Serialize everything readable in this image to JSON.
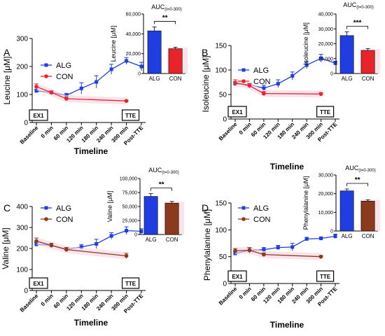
{
  "colors": {
    "alg": "#1f3de0",
    "con_red": "#e8242a",
    "con_brown": "#8b3a1e",
    "shade_pink": "#f8d0de"
  },
  "panels": [
    {
      "letter": "A",
      "ylabel": "Leucine [μM]",
      "xlabel": "Timeline",
      "categories": [
        "Baseline",
        "0 min",
        "60 min",
        "120 min",
        "180 min",
        "240 min",
        "300 min",
        "Post-TTE"
      ],
      "ylim": [
        0,
        300
      ],
      "yticks": [
        "0",
        "100",
        "200",
        "300"
      ],
      "box_left": "EX1",
      "box_right": "TTE",
      "con_color": "con_red",
      "series": [
        {
          "name": "ALG",
          "x": [
            0,
            1,
            2,
            3,
            4,
            5,
            6,
            7
          ],
          "values": [
            113,
            107,
            97,
            122,
            145,
            190,
            220,
            200
          ],
          "err": [
            6,
            5,
            7,
            20,
            22,
            18,
            12,
            15
          ]
        },
        {
          "name": "CON",
          "x": [
            0,
            1,
            2,
            6
          ],
          "values": [
            128,
            107,
            85,
            77
          ],
          "err": [
            10,
            6,
            5,
            3
          ]
        }
      ],
      "inset": {
        "title": "AUC",
        "title_sub": "(t=0-300)",
        "ylabel": "Leucine [μM]",
        "yticks": [
          "0",
          "20,000",
          "40,000",
          "60,000"
        ],
        "ylim": [
          0,
          60000
        ],
        "categories": [
          "ALG",
          "CON"
        ],
        "values": [
          43000,
          25000
        ],
        "err": [
          4000,
          1500
        ],
        "sig": "**"
      }
    },
    {
      "letter": "B",
      "ylabel": "Isoleucine [μM]",
      "xlabel": "Timeline",
      "categories": [
        "Baseline",
        "0 min",
        "60 min",
        "120 min",
        "180 min",
        "240 min",
        "300 min",
        "Post-TTE"
      ],
      "ylim": [
        0,
        150
      ],
      "yticks": [
        "0",
        "50",
        "100",
        "150"
      ],
      "box_left": "EX1",
      "box_right": "TTE",
      "con_color": "con_red",
      "series": [
        {
          "name": "ALG",
          "x": [
            0,
            1,
            2,
            3,
            4,
            5,
            6,
            7
          ],
          "values": [
            72,
            70,
            63,
            72,
            88,
            110,
            124,
            114
          ],
          "err": [
            4,
            3,
            6,
            8,
            8,
            7,
            8,
            4
          ]
        },
        {
          "name": "CON",
          "x": [
            0,
            1,
            2,
            6
          ],
          "values": [
            74,
            68,
            52,
            51
          ],
          "err": [
            6,
            4,
            4,
            3
          ]
        }
      ],
      "inset": {
        "title": "AUC",
        "title_sub": "(t=0-300)",
        "ylabel": "Isoleucine [μM]",
        "yticks": [
          "0",
          "10,000",
          "20,000",
          "30,000",
          "40,000"
        ],
        "ylim": [
          0,
          40000
        ],
        "categories": [
          "ALG",
          "CON"
        ],
        "values": [
          25500,
          15500
        ],
        "err": [
          2500,
          1200
        ],
        "sig": "***"
      }
    },
    {
      "letter": "C",
      "ylabel": "Valine [μM]",
      "xlabel": "Timeline",
      "categories": [
        "Baseline",
        "0 min",
        "60 min",
        "120 min",
        "180 min",
        "240 min",
        "300 min",
        "Post-TTE"
      ],
      "ylim": [
        0,
        400
      ],
      "yticks": [
        "0",
        "100",
        "200",
        "300",
        "400"
      ],
      "box_left": "EX1",
      "box_right": "TTE",
      "con_color": "con_brown",
      "series": [
        {
          "name": "ALG",
          "x": [
            0,
            1,
            2,
            3,
            4,
            5,
            6,
            7
          ],
          "values": [
            220,
            215,
            197,
            207,
            222,
            260,
            285,
            282
          ],
          "err": [
            10,
            10,
            8,
            12,
            22,
            15,
            18,
            12
          ]
        },
        {
          "name": "CON",
          "x": [
            0,
            1,
            2,
            6
          ],
          "values": [
            235,
            215,
            195,
            165
          ],
          "err": [
            15,
            10,
            10,
            12
          ]
        }
      ],
      "inset": {
        "title": "AUC",
        "title_sub": "(t=0-300)",
        "ylabel": "Valine [μM]",
        "yticks": [
          "0",
          "25,000",
          "50,000",
          "75,000",
          "100,000"
        ],
        "ylim": [
          0,
          100000
        ],
        "categories": [
          "ALG",
          "CON"
        ],
        "values": [
          68000,
          56000
        ],
        "err": [
          5000,
          3000
        ],
        "sig": "**"
      }
    },
    {
      "letter": "D",
      "ylabel": "Phenylalanine [μM]",
      "xlabel": "Timeline",
      "categories": [
        "Baseline",
        "0 min",
        "60 min",
        "120 min",
        "180 min",
        "240 min",
        "300 min",
        "Post-TTE"
      ],
      "ylim": [
        0,
        150
      ],
      "yticks": [
        "0",
        "50",
        "100",
        "150"
      ],
      "box_left": "EX1",
      "box_right": "TTE",
      "con_color": "con_brown",
      "series": [
        {
          "name": "ALG",
          "x": [
            0,
            1,
            2,
            3,
            4,
            5,
            6,
            7
          ],
          "values": [
            56,
            62,
            63,
            67,
            68,
            83,
            84,
            88
          ],
          "err": [
            3,
            4,
            4,
            4,
            7,
            3,
            3,
            4
          ]
        },
        {
          "name": "CON",
          "x": [
            0,
            1,
            2,
            6
          ],
          "values": [
            61,
            62,
            54,
            50
          ],
          "err": [
            4,
            5,
            3,
            2
          ]
        }
      ],
      "inset": {
        "title": "AUC",
        "title_sub": "(t=0-300)",
        "ylabel": "Phenylalanine [μM]",
        "yticks": [
          "0",
          "10,000",
          "20,000",
          "30,000"
        ],
        "ylim": [
          0,
          30000
        ],
        "categories": [
          "ALG",
          "CON"
        ],
        "values": [
          21500,
          16000
        ],
        "err": [
          1000,
          700
        ],
        "sig": "**"
      }
    }
  ]
}
